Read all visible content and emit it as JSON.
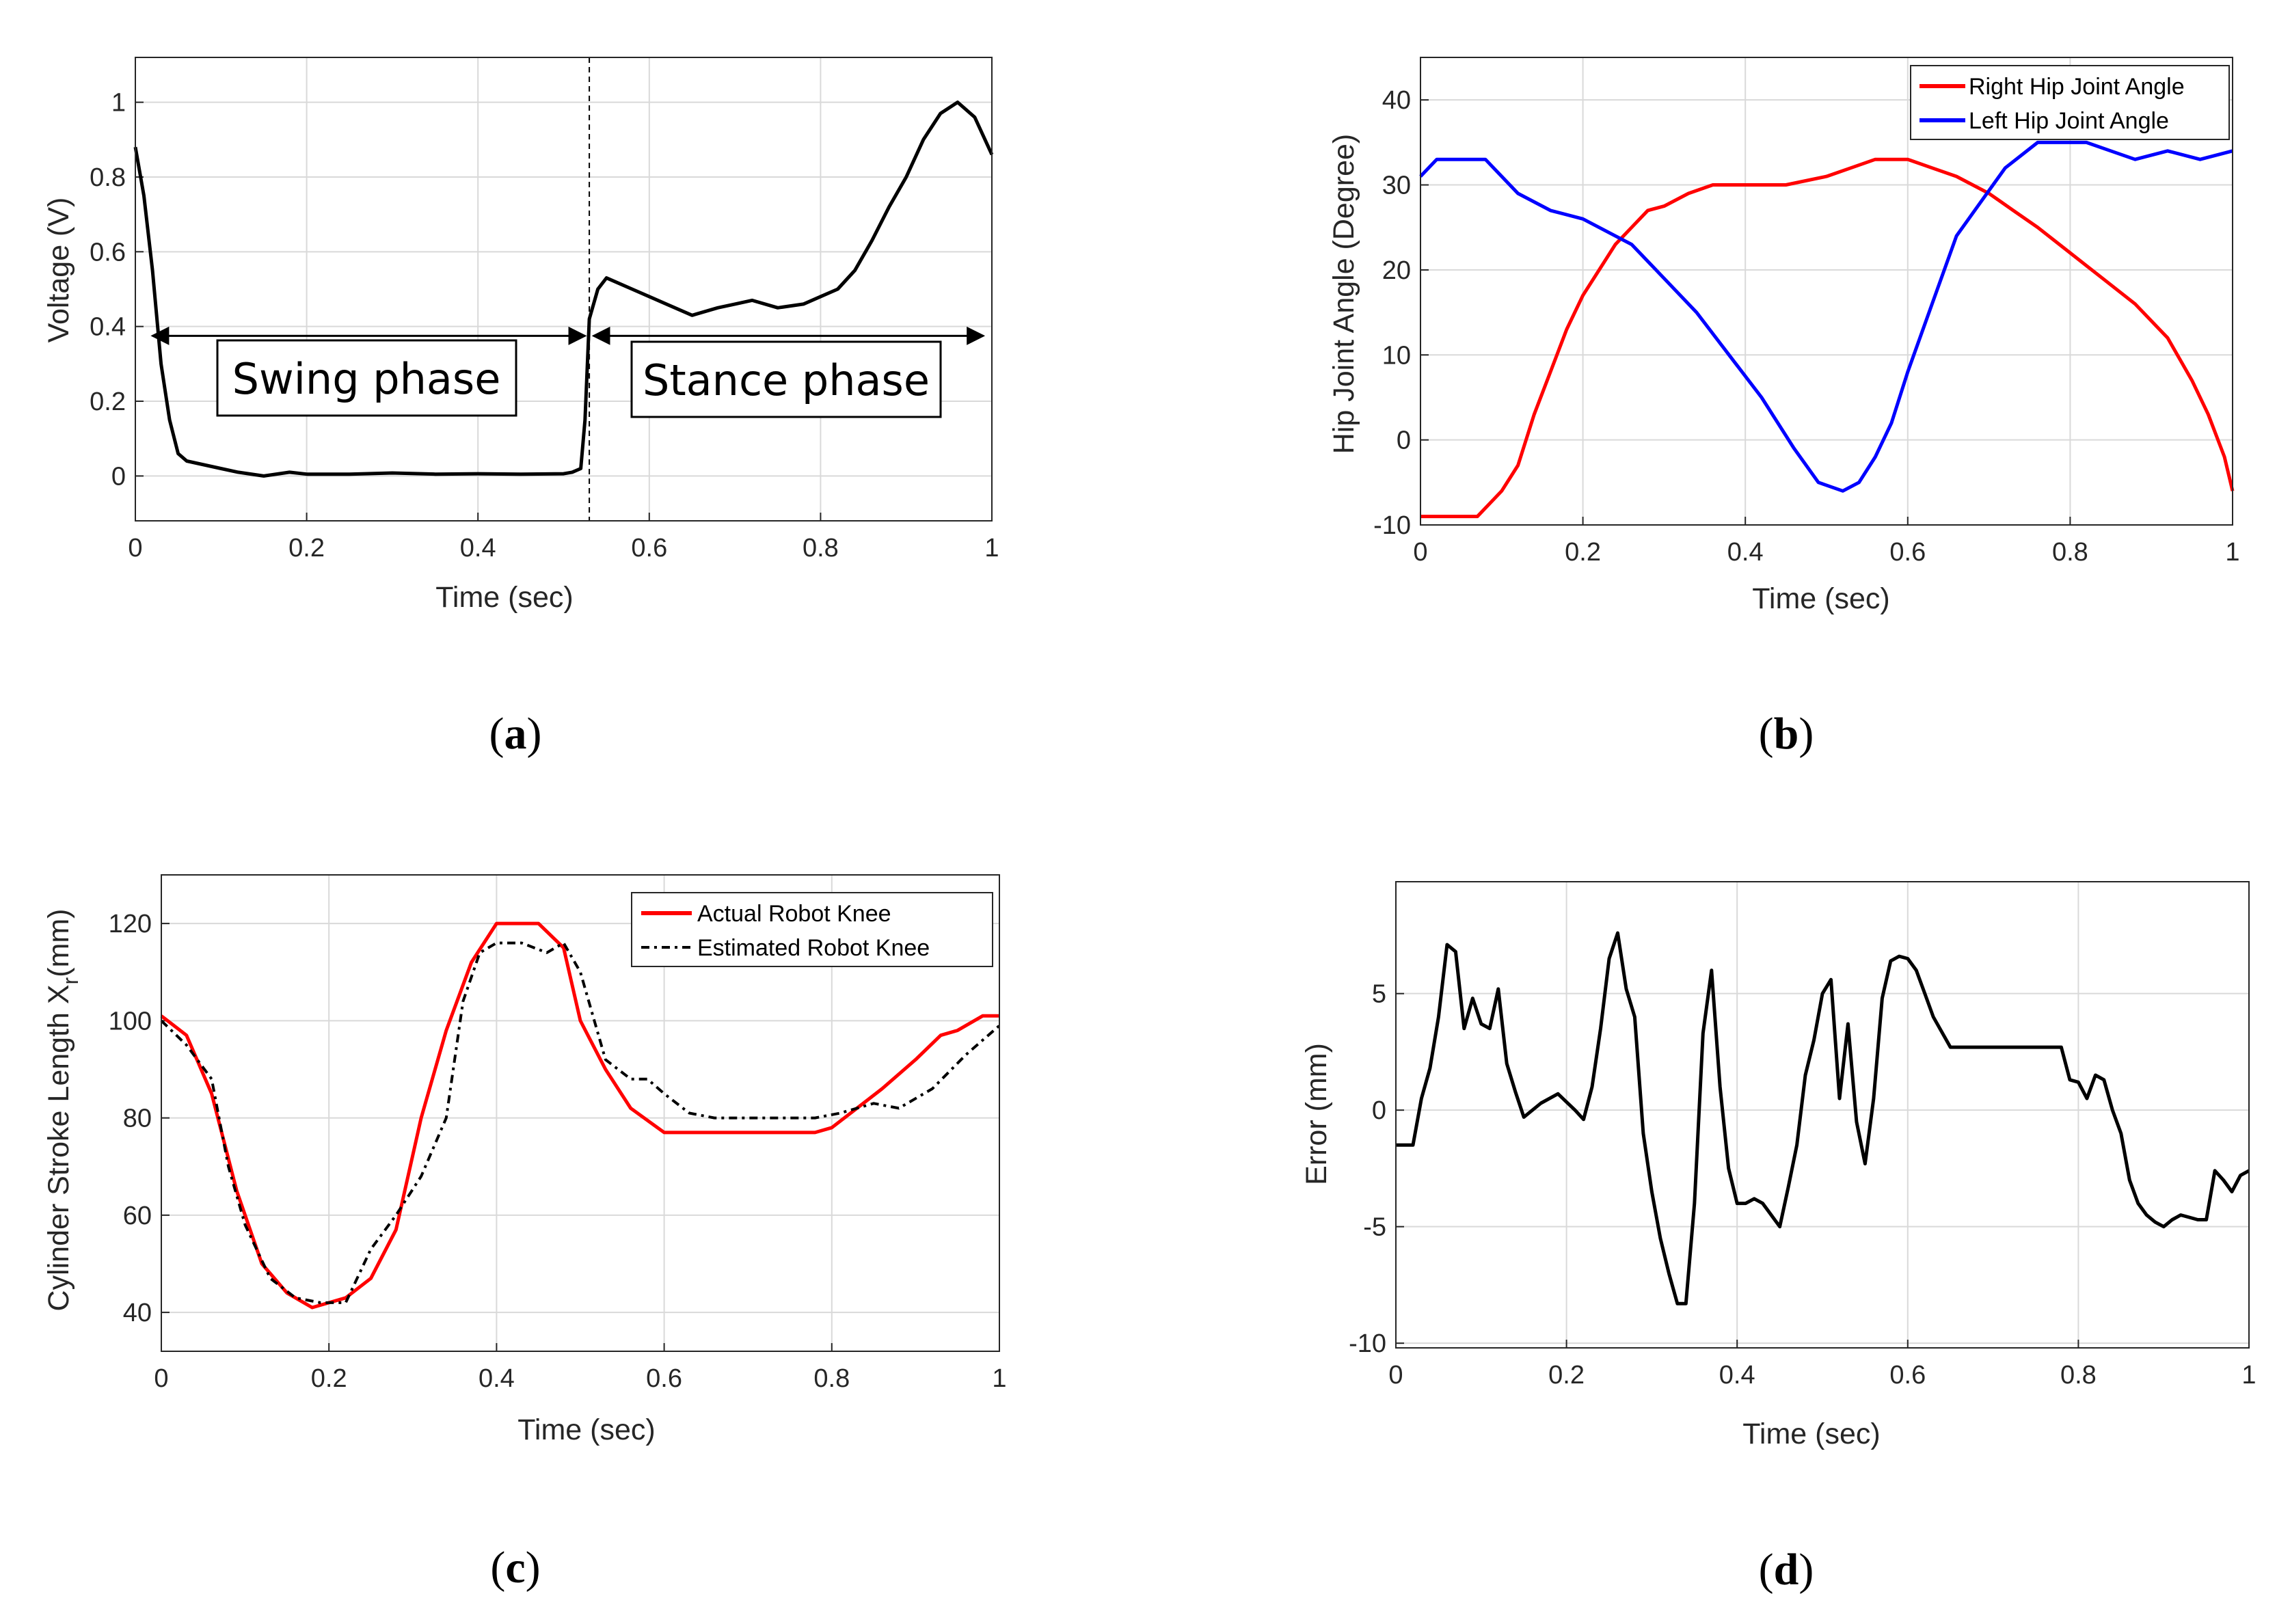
{
  "colors": {
    "red": "#ff0000",
    "blue": "#0000ff",
    "black": "#000000",
    "grid": "#d9d9d9"
  },
  "chart_data": [
    {
      "id": "a",
      "caption": "a",
      "type": "line",
      "title": "",
      "xlabel": "Time (sec)",
      "ylabel": "Voltage (V)",
      "xlim": [
        0,
        1
      ],
      "ylim": [
        -0.12,
        1.12
      ],
      "xticks": [
        0,
        0.2,
        0.4,
        0.6,
        0.8,
        1
      ],
      "xtick_labels": [
        "0",
        "0.2",
        "0.4",
        "0.6",
        "0.8",
        "1"
      ],
      "yticks": [
        0,
        0.2,
        0.4,
        0.6,
        0.8,
        1
      ],
      "ytick_labels": [
        "0",
        "0.2",
        "0.4",
        "0.6",
        "0.8",
        "1"
      ],
      "grid": true,
      "divider_x": 0.53,
      "phase_labels": {
        "swing": "Swing phase",
        "stance": "Stance phase"
      },
      "arrows": {
        "swing": [
          0.02,
          0.525
        ],
        "stance": [
          0.535,
          0.99
        ],
        "y": 0.375
      },
      "series": [
        {
          "name": "Voltage",
          "color": "#000000",
          "dash": "",
          "x": [
            0,
            0.01,
            0.02,
            0.03,
            0.04,
            0.05,
            0.06,
            0.08,
            0.1,
            0.12,
            0.15,
            0.18,
            0.2,
            0.25,
            0.3,
            0.35,
            0.4,
            0.45,
            0.5,
            0.51,
            0.52,
            0.525,
            0.53,
            0.54,
            0.55,
            0.56,
            0.58,
            0.6,
            0.62,
            0.65,
            0.68,
            0.7,
            0.72,
            0.75,
            0.78,
            0.8,
            0.82,
            0.84,
            0.86,
            0.88,
            0.9,
            0.92,
            0.94,
            0.96,
            0.98,
            1.0
          ],
          "y": [
            0.88,
            0.75,
            0.55,
            0.3,
            0.15,
            0.06,
            0.04,
            0.03,
            0.02,
            0.01,
            0.0,
            0.01,
            0.005,
            0.005,
            0.008,
            0.005,
            0.006,
            0.005,
            0.006,
            0.01,
            0.02,
            0.15,
            0.42,
            0.5,
            0.53,
            0.52,
            0.5,
            0.48,
            0.46,
            0.43,
            0.45,
            0.46,
            0.47,
            0.45,
            0.46,
            0.48,
            0.5,
            0.55,
            0.63,
            0.72,
            0.8,
            0.9,
            0.97,
            1.0,
            0.96,
            0.86
          ]
        }
      ]
    },
    {
      "id": "b",
      "caption": "b",
      "type": "line",
      "title": "",
      "xlabel": "Time (sec)",
      "ylabel": "Hip Joint Angle (Degree)",
      "xlim": [
        0,
        1
      ],
      "ylim": [
        -10,
        45
      ],
      "xticks": [
        0,
        0.2,
        0.4,
        0.6,
        0.8,
        1
      ],
      "xtick_labels": [
        "0",
        "0.2",
        "0.4",
        "0.6",
        "0.8",
        "1"
      ],
      "yticks": [
        -10,
        0,
        10,
        20,
        30,
        40
      ],
      "ytick_labels": [
        "-10",
        "0",
        "10",
        "20",
        "30",
        "40"
      ],
      "grid": true,
      "legend_position": "top-right",
      "series": [
        {
          "name": "Right Hip Joint Angle",
          "color": "#ff0000",
          "dash": "",
          "x": [
            0,
            0.07,
            0.1,
            0.12,
            0.14,
            0.16,
            0.18,
            0.2,
            0.22,
            0.24,
            0.26,
            0.28,
            0.3,
            0.33,
            0.36,
            0.4,
            0.45,
            0.5,
            0.53,
            0.56,
            0.6,
            0.63,
            0.66,
            0.7,
            0.73,
            0.76,
            0.8,
            0.84,
            0.88,
            0.92,
            0.95,
            0.97,
            0.99,
            1.0
          ],
          "y": [
            -9,
            -9,
            -6,
            -3,
            3,
            8,
            13,
            17,
            20,
            23,
            25,
            27,
            27.5,
            29,
            30,
            30,
            30,
            31,
            32,
            33,
            33,
            32,
            31,
            29,
            27,
            25,
            22,
            19,
            16,
            12,
            7,
            3,
            -2,
            -6
          ]
        },
        {
          "name": "Left Hip Joint Angle",
          "color": "#0000ff",
          "dash": "",
          "x": [
            0,
            0.02,
            0.08,
            0.12,
            0.16,
            0.2,
            0.24,
            0.26,
            0.3,
            0.34,
            0.38,
            0.42,
            0.46,
            0.49,
            0.52,
            0.54,
            0.56,
            0.58,
            0.6,
            0.63,
            0.66,
            0.69,
            0.72,
            0.76,
            0.78,
            0.82,
            0.85,
            0.88,
            0.92,
            0.96,
            1.0
          ],
          "y": [
            31,
            33,
            33,
            29,
            27,
            26,
            24,
            23,
            19,
            15,
            10,
            5,
            -1,
            -5,
            -6,
            -5,
            -2,
            2,
            8,
            16,
            24,
            28,
            32,
            35,
            35,
            35,
            34,
            33,
            34,
            33,
            34
          ]
        }
      ]
    },
    {
      "id": "c",
      "caption": "c",
      "type": "line",
      "title": "",
      "xlabel": "Time (sec)",
      "ylabel": "Cylinder Stroke Length X",
      "ylabel_sub": "r",
      "ylabel_suffix": "(mm)",
      "xlim": [
        0,
        1
      ],
      "ylim": [
        32,
        130
      ],
      "xticks": [
        0,
        0.2,
        0.4,
        0.6,
        0.8,
        1
      ],
      "xtick_labels": [
        "0",
        "0.2",
        "0.4",
        "0.6",
        "0.8",
        "1"
      ],
      "yticks": [
        40,
        60,
        80,
        100,
        120
      ],
      "ytick_labels": [
        "40",
        "60",
        "80",
        "100",
        "120"
      ],
      "grid": true,
      "legend_position": "top-right",
      "series": [
        {
          "name": "Actual Robot Knee",
          "color": "#ff0000",
          "dash": "",
          "x": [
            0,
            0.03,
            0.06,
            0.09,
            0.12,
            0.15,
            0.18,
            0.2,
            0.22,
            0.25,
            0.28,
            0.31,
            0.34,
            0.37,
            0.4,
            0.45,
            0.48,
            0.5,
            0.53,
            0.56,
            0.6,
            0.62,
            0.65,
            0.7,
            0.75,
            0.78,
            0.8,
            0.83,
            0.86,
            0.9,
            0.93,
            0.95,
            0.98,
            1.0
          ],
          "y": [
            101,
            97,
            85,
            65,
            50,
            44,
            41,
            42,
            43,
            47,
            57,
            80,
            98,
            112,
            120,
            120,
            115,
            100,
            90,
            82,
            77,
            77,
            77,
            77,
            77,
            77,
            78,
            82,
            86,
            92,
            97,
            98,
            101,
            101
          ]
        },
        {
          "name": "Estimated Robot Knee",
          "color": "#000000",
          "dash": "12,7,4,7",
          "x": [
            0,
            0.03,
            0.06,
            0.08,
            0.1,
            0.13,
            0.16,
            0.19,
            0.22,
            0.25,
            0.28,
            0.31,
            0.34,
            0.36,
            0.38,
            0.4,
            0.43,
            0.46,
            0.48,
            0.5,
            0.53,
            0.56,
            0.58,
            0.6,
            0.63,
            0.66,
            0.7,
            0.75,
            0.78,
            0.81,
            0.85,
            0.88,
            0.92,
            0.96,
            1.0
          ],
          "y": [
            100,
            95,
            88,
            70,
            58,
            47,
            43,
            42,
            42,
            53,
            60,
            68,
            80,
            104,
            114,
            116,
            116,
            114,
            116,
            110,
            92,
            88,
            88,
            85,
            81,
            80,
            80,
            80,
            80,
            81,
            83,
            82,
            86,
            93,
            99
          ]
        }
      ]
    },
    {
      "id": "d",
      "caption": "d",
      "type": "line",
      "title": "",
      "xlabel": "Time (sec)",
      "ylabel": "Error (mm)",
      "xlim": [
        0,
        1
      ],
      "ylim": [
        -10.2,
        9.8
      ],
      "xticks": [
        0,
        0.2,
        0.4,
        0.6,
        0.8,
        1
      ],
      "xtick_labels": [
        "0",
        "0.2",
        "0.4",
        "0.6",
        "0.8",
        "1"
      ],
      "yticks": [
        -10,
        -5,
        0,
        5
      ],
      "ytick_labels": [
        "-10",
        "-5",
        "0",
        "5"
      ],
      "grid": true,
      "series": [
        {
          "name": "Error",
          "color": "#000000",
          "dash": "",
          "x": [
            0,
            0.02,
            0.03,
            0.04,
            0.05,
            0.06,
            0.07,
            0.08,
            0.09,
            0.1,
            0.11,
            0.12,
            0.13,
            0.14,
            0.15,
            0.17,
            0.19,
            0.21,
            0.22,
            0.23,
            0.24,
            0.25,
            0.26,
            0.27,
            0.28,
            0.29,
            0.3,
            0.31,
            0.32,
            0.33,
            0.34,
            0.35,
            0.36,
            0.37,
            0.38,
            0.39,
            0.4,
            0.41,
            0.42,
            0.43,
            0.44,
            0.45,
            0.46,
            0.47,
            0.48,
            0.49,
            0.5,
            0.51,
            0.52,
            0.53,
            0.54,
            0.55,
            0.56,
            0.57,
            0.58,
            0.59,
            0.6,
            0.61,
            0.62,
            0.63,
            0.65,
            0.7,
            0.75,
            0.78,
            0.79,
            0.8,
            0.81,
            0.82,
            0.83,
            0.84,
            0.85,
            0.86,
            0.87,
            0.88,
            0.89,
            0.9,
            0.91,
            0.92,
            0.93,
            0.94,
            0.95,
            0.96,
            0.97,
            0.98,
            0.99,
            1.0
          ],
          "y": [
            -1.5,
            -1.5,
            0.5,
            1.8,
            4.0,
            7.1,
            6.8,
            3.5,
            4.8,
            3.7,
            3.5,
            5.2,
            2.0,
            0.8,
            -0.3,
            0.3,
            0.7,
            0.0,
            -0.4,
            1.0,
            3.5,
            6.5,
            7.6,
            5.2,
            4.0,
            -1.0,
            -3.5,
            -5.5,
            -7.0,
            -8.3,
            -8.3,
            -4.0,
            3.3,
            6.0,
            1.0,
            -2.5,
            -4.0,
            -4.0,
            -3.8,
            -4.0,
            -4.5,
            -5.0,
            -3.3,
            -1.5,
            1.5,
            3.0,
            5.0,
            5.6,
            0.5,
            3.7,
            -0.5,
            -2.3,
            0.5,
            4.8,
            6.4,
            6.6,
            6.5,
            6.0,
            5.0,
            4.0,
            2.7,
            2.7,
            2.7,
            2.7,
            1.3,
            1.2,
            0.5,
            1.5,
            1.3,
            0.0,
            -1.0,
            -3.0,
            -4.0,
            -4.5,
            -4.8,
            -5.0,
            -4.7,
            -4.5,
            -4.6,
            -4.7,
            -4.7,
            -2.6,
            -3.0,
            -3.5,
            -2.8,
            -2.6
          ]
        }
      ]
    }
  ]
}
